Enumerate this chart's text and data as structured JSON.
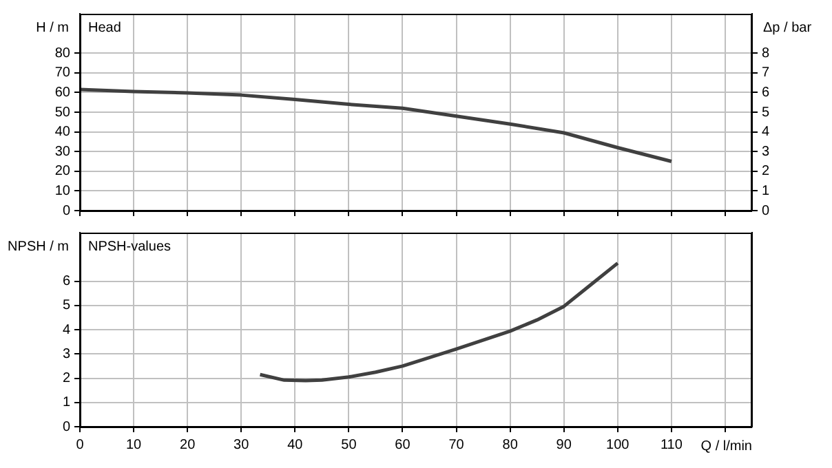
{
  "chart_data": [
    {
      "type": "line",
      "title": "Head",
      "ylabel": "H / m",
      "y2label": "Δp / bar",
      "x": [
        0,
        5,
        10,
        20,
        30,
        40,
        50,
        60,
        70,
        80,
        90,
        100,
        110
      ],
      "series": [
        {
          "color": "#404040",
          "values": [
            61.5,
            61,
            60.5,
            59.8,
            58.7,
            56.5,
            54,
            52,
            48,
            44,
            39.5,
            32,
            25
          ]
        }
      ],
      "xlim": [
        0,
        125
      ],
      "xticks": [
        0,
        10,
        20,
        30,
        40,
        50,
        60,
        70,
        80,
        90,
        100,
        110,
        {
          "value": 120,
          "label": null
        }
      ],
      "ylim": [
        0,
        100
      ],
      "yticks": [
        0,
        10,
        20,
        30,
        40,
        50,
        60,
        70,
        80
      ],
      "y2lim": [
        0,
        10
      ],
      "y2ticks": [
        0,
        1,
        2,
        3,
        4,
        5,
        6,
        7,
        8
      ],
      "grid": true,
      "tick_labels": "y",
      "marker": "none",
      "line_style": "solid"
    },
    {
      "type": "line",
      "title": "NPSH-values",
      "ylabel": "NPSH / m",
      "xlabel": "Q / l/min",
      "x": [
        33.5,
        38,
        42,
        45,
        50,
        55,
        60,
        70,
        80,
        85,
        90,
        95,
        100
      ],
      "series": [
        {
          "color": "#404040",
          "values": [
            2.15,
            1.92,
            1.9,
            1.92,
            2.05,
            2.25,
            2.5,
            3.2,
            3.94,
            4.4,
            4.96,
            5.85,
            6.74
          ]
        }
      ],
      "xlim": [
        0,
        125
      ],
      "xticks": [
        0,
        10,
        20,
        30,
        40,
        50,
        60,
        70,
        80,
        90,
        100,
        110,
        {
          "value": 120,
          "label": null
        }
      ],
      "ylim": [
        0,
        8
      ],
      "yticks": [
        0,
        1,
        2,
        3,
        4,
        5,
        6
      ],
      "grid": true,
      "marker": "none",
      "line_style": "solid"
    }
  ]
}
